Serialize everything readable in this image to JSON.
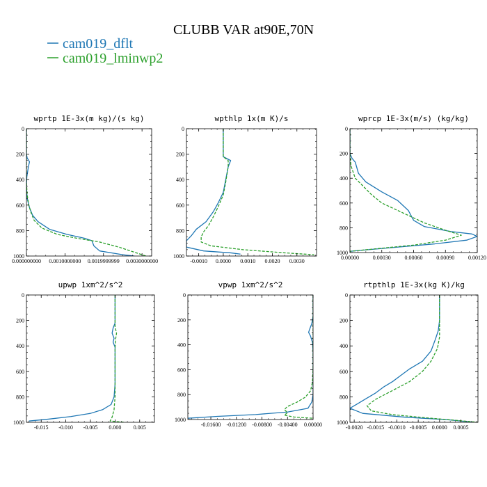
{
  "figure": {
    "title": "CLUBB VAR at90E,70N",
    "legend": [
      {
        "label": "cam019_dflt",
        "color": "#1f77b4",
        "dash": "solid"
      },
      {
        "label": "cam019_lminwp2",
        "color": "#2ca02c",
        "dash": "dashed"
      }
    ]
  },
  "chart_data": [
    {
      "type": "line",
      "title": "wprtp  1E-3x(m kg)/(s kg)",
      "xlabel": "",
      "ylabel": "",
      "xlim": [
        0,
        0.00325
      ],
      "ylim": [
        1000,
        0
      ],
      "x_ticks": [
        0,
        0.001,
        0.002,
        0.003
      ],
      "x_tick_labels": [
        "0.000000000",
        "0.0010000000",
        "0.0019999999",
        "0.0030000000"
      ],
      "y_ticks": [
        0,
        200,
        400,
        600,
        800,
        1000
      ],
      "series": [
        {
          "name": "cam019_dflt",
          "points": [
            [
              0,
              0
            ],
            [
              0,
              200
            ],
            [
              2e-05,
              230
            ],
            [
              8e-05,
              260
            ],
            [
              5e-05,
              300
            ],
            [
              1e-05,
              380
            ],
            [
              0,
              450
            ],
            [
              2e-05,
              550
            ],
            [
              8e-05,
              620
            ],
            [
              0.00016,
              680
            ],
            [
              0.0003,
              730
            ],
            [
              0.0006,
              790
            ],
            [
              0.00105,
              830
            ],
            [
              0.0015,
              860
            ],
            [
              0.0017,
              880
            ],
            [
              0.00175,
              920
            ],
            [
              0.0019,
              960
            ],
            [
              0.0025,
              990
            ],
            [
              0.0028,
              1000
            ]
          ]
        },
        {
          "name": "cam019_lminwp2",
          "points": [
            [
              0,
              0
            ],
            [
              0,
              200
            ],
            [
              0,
              300
            ],
            [
              0,
              420
            ],
            [
              2e-05,
              520
            ],
            [
              6e-05,
              600
            ],
            [
              0.00012,
              660
            ],
            [
              0.0002,
              720
            ],
            [
              0.0004,
              780
            ],
            [
              0.0008,
              830
            ],
            [
              0.0013,
              860
            ],
            [
              0.0019,
              890
            ],
            [
              0.0024,
              930
            ],
            [
              0.0028,
              970
            ],
            [
              0.0031,
              1000
            ]
          ]
        }
      ]
    },
    {
      "type": "line",
      "title": "wpthlp  1x(m K)/s",
      "xlabel": "",
      "ylabel": "",
      "xlim": [
        -0.0015,
        0.0038
      ],
      "ylim": [
        1000,
        0
      ],
      "x_ticks": [
        -0.001,
        0,
        0.001,
        0.002,
        0.003
      ],
      "x_tick_labels": [
        "-0.0010",
        "0.0000",
        "0.0010",
        "0.0020",
        "0.0030"
      ],
      "y_ticks": [
        0,
        200,
        400,
        600,
        800,
        1000
      ],
      "series": [
        {
          "name": "cam019_dflt",
          "points": [
            [
              0,
              0
            ],
            [
              0,
              220
            ],
            [
              0.0003,
              250
            ],
            [
              0.0002,
              300
            ],
            [
              0.0001,
              400
            ],
            [
              0,
              500
            ],
            [
              -0.0002,
              580
            ],
            [
              -0.0004,
              650
            ],
            [
              -0.0007,
              730
            ],
            [
              -0.0011,
              790
            ],
            [
              -0.0013,
              840
            ],
            [
              -0.0015,
              880
            ],
            [
              -0.0015,
              930
            ],
            [
              -0.0008,
              960
            ],
            [
              0.0003,
              975
            ],
            [
              0.0007,
              985
            ]
          ]
        },
        {
          "name": "cam019_lminwp2",
          "points": [
            [
              0,
              0
            ],
            [
              0,
              220
            ],
            [
              0.0002,
              250
            ],
            [
              0.0002,
              300
            ],
            [
              0.0001,
              420
            ],
            [
              0,
              520
            ],
            [
              -0.0002,
              610
            ],
            [
              -0.0004,
              690
            ],
            [
              -0.0006,
              760
            ],
            [
              -0.0008,
              810
            ],
            [
              -0.0009,
              850
            ],
            [
              -0.0009,
              890
            ],
            [
              -0.0005,
              920
            ],
            [
              0.0008,
              950
            ],
            [
              0.0025,
              975
            ],
            [
              0.0037,
              990
            ]
          ]
        }
      ]
    },
    {
      "type": "line",
      "title": "wprcp  1E-3x(m/s) (kg/kg)",
      "xlabel": "",
      "ylabel": "",
      "xlim": [
        0,
        0.0012
      ],
      "ylim": [
        1000,
        0
      ],
      "x_ticks": [
        0,
        0.0003,
        0.0006,
        0.0009,
        0.0012
      ],
      "x_tick_labels": [
        "0.00000",
        "0.00030",
        "0.00060",
        "0.00090",
        "0.00120"
      ],
      "y_ticks": [
        0,
        200,
        400,
        600,
        800,
        1000
      ],
      "series": [
        {
          "name": "cam019_dflt",
          "points": [
            [
              0,
              0
            ],
            [
              0,
              200
            ],
            [
              2e-05,
              240
            ],
            [
              5e-05,
              270
            ],
            [
              8e-05,
              360
            ],
            [
              0.00015,
              430
            ],
            [
              0.0003,
              510
            ],
            [
              0.00045,
              580
            ],
            [
              0.00055,
              660
            ],
            [
              0.0006,
              740
            ],
            [
              0.0007,
              790
            ],
            [
              0.00095,
              830
            ],
            [
              0.00115,
              850
            ],
            [
              0.0012,
              870
            ],
            [
              0.0011,
              900
            ],
            [
              0.0008,
              930
            ],
            [
              0.0004,
              960
            ],
            [
              0,
              990
            ]
          ]
        },
        {
          "name": "cam019_lminwp2",
          "points": [
            [
              0,
              0
            ],
            [
              0,
              200
            ],
            [
              1e-05,
              300
            ],
            [
              5e-05,
              400
            ],
            [
              0.00012,
              460
            ],
            [
              0.0002,
              530
            ],
            [
              0.0003,
              600
            ],
            [
              0.0005,
              680
            ],
            [
              0.0007,
              760
            ],
            [
              0.0009,
              820
            ],
            [
              0.00105,
              860
            ],
            [
              0.0009,
              900
            ],
            [
              0.0006,
              940
            ],
            [
              0.0003,
              965
            ],
            [
              0,
              990
            ]
          ]
        }
      ]
    },
    {
      "type": "line",
      "title": "upwp  1xm^2/s^2",
      "xlabel": "",
      "ylabel": "",
      "xlim": [
        -0.018,
        0.008
      ],
      "ylim": [
        1000,
        0
      ],
      "x_ticks": [
        -0.015,
        -0.01,
        -0.005,
        0,
        0.005
      ],
      "x_tick_labels": [
        "-0.015",
        "-0.010",
        "-0.005",
        "0.000",
        "0.005"
      ],
      "y_ticks": [
        0,
        200,
        400,
        600,
        800,
        1000
      ],
      "series": [
        {
          "name": "cam019_dflt",
          "points": [
            [
              0,
              0
            ],
            [
              0,
              220
            ],
            [
              -0.0004,
              260
            ],
            [
              -0.0006,
              300
            ],
            [
              -0.0002,
              340
            ],
            [
              -0.0004,
              370
            ],
            [
              0,
              410
            ],
            [
              0,
              500
            ],
            [
              0,
              700
            ],
            [
              -0.0002,
              800
            ],
            [
              -0.0008,
              860
            ],
            [
              -0.0025,
              900
            ],
            [
              -0.005,
              930
            ],
            [
              -0.009,
              955
            ],
            [
              -0.0135,
              975
            ],
            [
              -0.0175,
              990
            ]
          ]
        },
        {
          "name": "cam019_lminwp2",
          "points": [
            [
              0,
              0
            ],
            [
              0,
              250
            ],
            [
              0.0003,
              300
            ],
            [
              0.0001,
              350
            ],
            [
              0,
              420
            ],
            [
              0,
              600
            ],
            [
              0,
              800
            ],
            [
              -0.0002,
              900
            ],
            [
              -0.0006,
              960
            ],
            [
              -0.001,
              990
            ],
            [
              0.0005,
              995
            ],
            [
              0.002,
              1000
            ]
          ]
        }
      ]
    },
    {
      "type": "line",
      "title": "vpwp  1xm^2/s^2",
      "xlabel": "",
      "ylabel": "",
      "xlim": [
        -0.0196,
        0
      ],
      "ylim": [
        1000,
        0
      ],
      "x_ticks": [
        -0.016,
        -0.012,
        -0.008,
        -0.004,
        0
      ],
      "x_tick_labels": [
        "-0.01600",
        "-0.01200",
        "-0.00800",
        "-0.00400",
        "0.00000"
      ],
      "y_ticks": [
        0,
        200,
        400,
        600,
        800,
        1000
      ],
      "series": [
        {
          "name": "cam019_dflt",
          "points": [
            [
              0,
              0
            ],
            [
              0,
              170
            ],
            [
              -0.0002,
              230
            ],
            [
              -0.0005,
              270
            ],
            [
              -0.0007,
              300
            ],
            [
              -0.0004,
              330
            ],
            [
              -0.0001,
              380
            ],
            [
              0,
              450
            ],
            [
              0,
              600
            ],
            [
              0,
              800
            ],
            [
              -0.0002,
              860
            ],
            [
              -0.0008,
              910
            ],
            [
              -0.004,
              940
            ],
            [
              -0.009,
              960
            ],
            [
              -0.015,
              975
            ],
            [
              -0.0196,
              990
            ]
          ]
        },
        {
          "name": "cam019_lminwp2",
          "points": [
            [
              0,
              0
            ],
            [
              0,
              200
            ],
            [
              0,
              400
            ],
            [
              0,
              600
            ],
            [
              -0.0001,
              700
            ],
            [
              -0.0004,
              770
            ],
            [
              -0.0012,
              820
            ],
            [
              -0.0025,
              860
            ],
            [
              -0.004,
              895
            ],
            [
              -0.0045,
              920
            ],
            [
              -0.004,
              945
            ],
            [
              -0.0045,
              965
            ],
            [
              -0.003,
              980
            ],
            [
              0,
              990
            ]
          ]
        }
      ]
    },
    {
      "type": "line",
      "title": "rtpthlp  1E-3x(kg K)/kg",
      "xlabel": "",
      "ylabel": "",
      "xlim": [
        -0.0021,
        0.0009
      ],
      "ylim": [
        1000,
        0
      ],
      "x_ticks": [
        -0.002,
        -0.0015,
        -0.001,
        -0.0005,
        0,
        0.0005
      ],
      "x_tick_labels": [
        "-0.0020",
        "-0.0015",
        "-0.0010",
        "-0.0005",
        "0.0000",
        "0.0005"
      ],
      "y_ticks": [
        0,
        200,
        400,
        600,
        800,
        1000
      ],
      "series": [
        {
          "name": "cam019_dflt",
          "points": [
            [
              0,
              0
            ],
            [
              0,
              200
            ],
            [
              -3e-05,
              280
            ],
            [
              -0.0001,
              350
            ],
            [
              -0.0002,
              440
            ],
            [
              -0.0004,
              520
            ],
            [
              -0.0007,
              580
            ],
            [
              -0.0009,
              630
            ],
            [
              -0.0011,
              680
            ],
            [
              -0.0013,
              720
            ],
            [
              -0.0015,
              770
            ],
            [
              -0.0017,
              810
            ],
            [
              -0.0019,
              850
            ],
            [
              -0.0021,
              890
            ],
            [
              -0.0018,
              930
            ],
            [
              -0.0008,
              960
            ],
            [
              0.0002,
              980
            ],
            [
              0.0008,
              1000
            ]
          ]
        },
        {
          "name": "cam019_lminwp2",
          "points": [
            [
              0,
              0
            ],
            [
              0,
              200
            ],
            [
              0,
              330
            ],
            [
              -5e-05,
              420
            ],
            [
              -0.0002,
              520
            ],
            [
              -0.0004,
              600
            ],
            [
              -0.0007,
              680
            ],
            [
              -0.0011,
              750
            ],
            [
              -0.0015,
              820
            ],
            [
              -0.0017,
              870
            ],
            [
              -0.0016,
              910
            ],
            [
              -0.0011,
              940
            ],
            [
              -0.0003,
              965
            ],
            [
              0.0004,
              985
            ],
            [
              0.0009,
              1000
            ]
          ]
        }
      ]
    }
  ]
}
